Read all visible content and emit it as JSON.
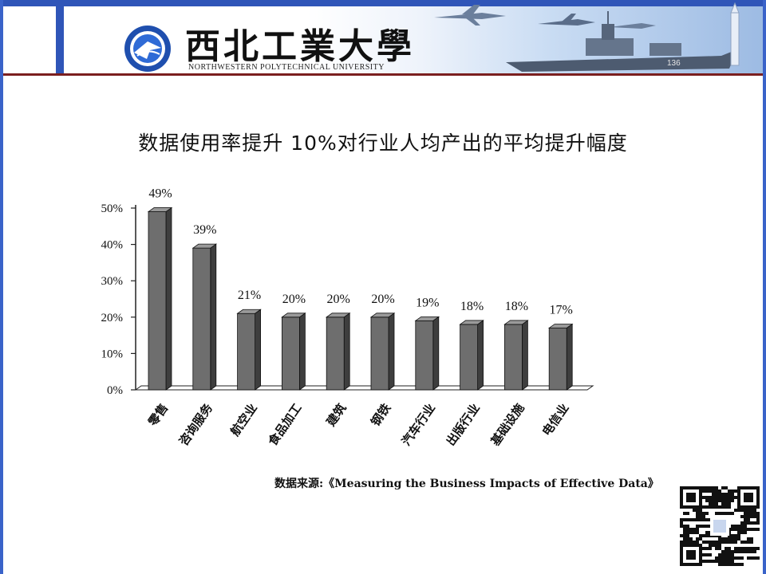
{
  "header": {
    "university_name_cn": "西北工業大學",
    "university_name_en": "NORTHWESTERN POLYTECHNICAL UNIVERSITY",
    "ship_number": "136"
  },
  "slide": {
    "title": "数据使用率提升 10%对行业人均产出的平均提升幅度",
    "source": "数据来源:《Measuring the Business Impacts of Effective Data》"
  },
  "colors": {
    "bar_face": "#6e6e6e",
    "bar_top": "#9a9a9a",
    "bar_side": "#3e3e3e",
    "frame": "#3a63c9"
  },
  "chart_data": {
    "type": "bar",
    "categories": [
      "零售",
      "咨询服务",
      "航空业",
      "食品加工",
      "建筑",
      "钢铁",
      "汽车行业",
      "出版行业",
      "基础设施",
      "电信业"
    ],
    "values": [
      49,
      39,
      21,
      20,
      20,
      20,
      19,
      18,
      18,
      17
    ],
    "data_labels": [
      "49%",
      "39%",
      "21%",
      "20%",
      "20%",
      "20%",
      "19%",
      "18%",
      "18%",
      "17%"
    ],
    "y_ticks": [
      0,
      10,
      20,
      30,
      40,
      50
    ],
    "y_tick_labels": [
      "0%",
      "10%",
      "20%",
      "30%",
      "40%",
      "50%"
    ],
    "ylim": [
      0,
      50
    ],
    "grid": false,
    "legend": "none"
  }
}
